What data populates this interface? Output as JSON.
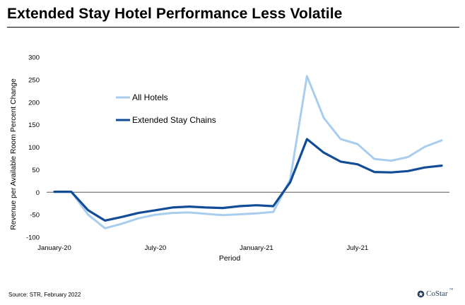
{
  "header": {
    "title": "Extended Stay Hotel Performance Less Volatile"
  },
  "footer": {
    "source": "Source: STR, February 2022",
    "logo_text": "CoStar",
    "logo_mark": "™"
  },
  "chart_data": {
    "type": "line",
    "title": "",
    "xlabel": "Period",
    "ylabel": "Revenue per Available Room Percent Change",
    "ylim": [
      -100,
      300
    ],
    "yticks": [
      -100,
      -50,
      0,
      50,
      100,
      150,
      200,
      250,
      300
    ],
    "x": [
      "Jan-20",
      "Feb-20",
      "Mar-20",
      "Apr-20",
      "May-20",
      "Jun-20",
      "Jul-20",
      "Aug-20",
      "Sep-20",
      "Oct-20",
      "Nov-20",
      "Dec-20",
      "Jan-21",
      "Feb-21",
      "Mar-21",
      "Apr-21",
      "May-21",
      "Jun-21",
      "Jul-21",
      "Aug-21",
      "Sep-21",
      "Oct-21",
      "Nov-21",
      "Dec-21"
    ],
    "xtick_labels": [
      {
        "index": 0,
        "label": "January-20"
      },
      {
        "index": 6,
        "label": "July-20"
      },
      {
        "index": 12,
        "label": "January-21"
      },
      {
        "index": 18,
        "label": "July-21"
      }
    ],
    "legend_position": "upper-left",
    "grid": false,
    "series": [
      {
        "name": "All Hotels",
        "color": "#a9cdee",
        "values": [
          1,
          1,
          -50,
          -80,
          -70,
          -58,
          -50,
          -46,
          -45,
          -48,
          -51,
          -49,
          -47,
          -44,
          28,
          258,
          165,
          118,
          107,
          74,
          70,
          78,
          101,
          115
        ]
      },
      {
        "name": "Extended Stay Chains",
        "color": "#124c97",
        "values": [
          1,
          1,
          -40,
          -63,
          -55,
          -46,
          -40,
          -34,
          -32,
          -34,
          -35,
          -31,
          -29,
          -31,
          22,
          118,
          88,
          68,
          62,
          45,
          44,
          47,
          55,
          59
        ]
      }
    ]
  }
}
